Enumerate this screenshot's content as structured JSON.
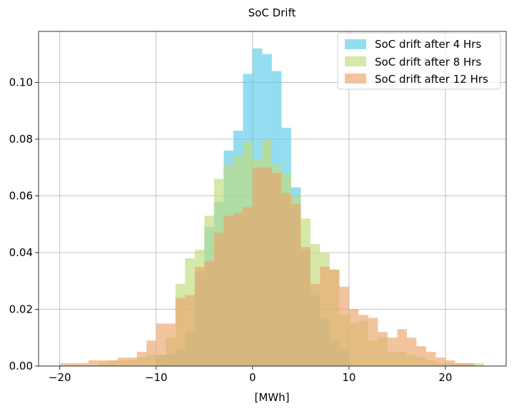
{
  "chart_data": {
    "type": "histogram",
    "title": "SoC Drift",
    "xlabel": "[MWh]",
    "ylabel": "",
    "xlim": [
      -22.2,
      26.3
    ],
    "ylim": [
      0,
      0.118
    ],
    "xticks": [
      -20,
      -10,
      0,
      10,
      20
    ],
    "yticks": [
      0.0,
      0.02,
      0.04,
      0.06,
      0.08,
      0.1
    ],
    "xtick_labels": [
      "−20",
      "−10",
      "0",
      "10",
      "20"
    ],
    "ytick_labels": [
      "0.00",
      "0.02",
      "0.04",
      "0.06",
      "0.08",
      "0.10"
    ],
    "grid": true,
    "legend_position": "top-right",
    "series": [
      {
        "name": "SoC drift after 4 Hrs",
        "color": "#5bcbea",
        "edges": [
          -10,
          -9,
          -8,
          -7,
          -6,
          -5,
          -4,
          -3,
          -2,
          -1,
          0,
          1,
          2,
          3,
          4,
          5,
          6,
          7,
          8,
          9,
          10
        ],
        "values": [
          0.004,
          0.004,
          0.006,
          0.012,
          0.033,
          0.049,
          0.058,
          0.076,
          0.083,
          0.103,
          0.112,
          0.11,
          0.104,
          0.084,
          0.063,
          0.041,
          0.025,
          0.017,
          0.009,
          0.006,
          0.002
        ]
      },
      {
        "name": "SoC drift after 8 Hrs",
        "color": "#c0db79",
        "edges": [
          -16,
          -15,
          -14,
          -13,
          -12,
          -11,
          -10,
          -9,
          -8,
          -7,
          -6,
          -5,
          -4,
          -3,
          -2,
          -1,
          0,
          1,
          2,
          3,
          4,
          5,
          6,
          7,
          8,
          9,
          10,
          11,
          12,
          13,
          14,
          15,
          16,
          17,
          18,
          19,
          20,
          21,
          22,
          23,
          24
        ],
        "values": [
          0.001,
          0.002,
          0.002,
          0.002,
          0.003,
          0.004,
          0.004,
          0.01,
          0.029,
          0.038,
          0.041,
          0.053,
          0.066,
          0.071,
          0.074,
          0.079,
          0.073,
          0.08,
          0.071,
          0.068,
          0.06,
          0.052,
          0.043,
          0.04,
          0.034,
          0.018,
          0.015,
          0.016,
          0.009,
          0.01,
          0.005,
          0.005,
          0.004,
          0.003,
          0.002,
          0.001,
          0.001,
          0.001,
          0.001,
          0.001
        ]
      },
      {
        "name": "SoC drift after 12 Hrs",
        "color": "#eaa56b",
        "edges": [
          -20,
          -19,
          -18,
          -17,
          -16,
          -15,
          -14,
          -13,
          -12,
          -11,
          -10,
          -9,
          -8,
          -7,
          -6,
          -5,
          -4,
          -3,
          -2,
          -1,
          0,
          1,
          2,
          3,
          4,
          5,
          6,
          7,
          8,
          9,
          10,
          11,
          12,
          13,
          14,
          15,
          16,
          17,
          18,
          19,
          20,
          21,
          22,
          23
        ],
        "values": [
          0.001,
          0.001,
          0.001,
          0.002,
          0.002,
          0.002,
          0.003,
          0.003,
          0.005,
          0.009,
          0.015,
          0.015,
          0.024,
          0.025,
          0.035,
          0.037,
          0.047,
          0.053,
          0.054,
          0.056,
          0.07,
          0.07,
          0.068,
          0.061,
          0.057,
          0.042,
          0.029,
          0.035,
          0.034,
          0.028,
          0.02,
          0.018,
          0.017,
          0.012,
          0.01,
          0.013,
          0.01,
          0.007,
          0.005,
          0.003,
          0.002,
          0.001,
          0.001
        ]
      }
    ]
  }
}
